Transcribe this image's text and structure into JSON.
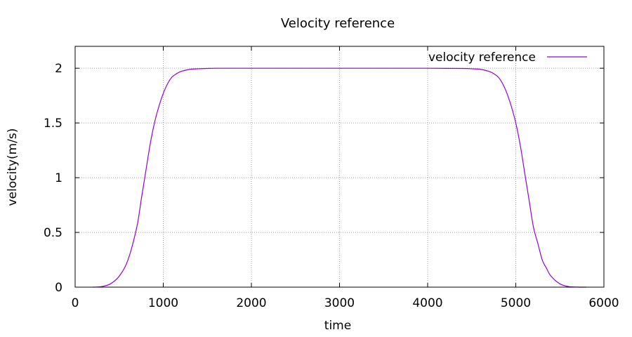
{
  "chart_data": {
    "type": "line",
    "title": "Velocity reference",
    "xlabel": "time",
    "ylabel": "velocity(m/s)",
    "xlim": [
      0,
      6000
    ],
    "ylim": [
      0,
      2.2
    ],
    "x_ticks": [
      0,
      1000,
      2000,
      3000,
      4000,
      5000,
      6000
    ],
    "x_tick_labels": [
      "0",
      "1000",
      "2000",
      "3000",
      "4000",
      "5000",
      "6000"
    ],
    "y_ticks": [
      0,
      0.5,
      1,
      1.5,
      2
    ],
    "y_tick_labels": [
      "0",
      "0.5",
      "1",
      "1.5",
      "2"
    ],
    "grid": true,
    "legend_position": "top-right",
    "colors": {
      "series": "#9400d3",
      "grid": "#a0a0a0",
      "axes": "#000000"
    },
    "series": [
      {
        "name": "velocity reference",
        "x": [
          200,
          300,
          400,
          500,
          600,
          700,
          750,
          800,
          850,
          900,
          950,
          1000,
          1050,
          1100,
          1150,
          1200,
          1300,
          1400,
          1500,
          1600,
          2000,
          3000,
          4000,
          4400,
          4500,
          4600,
          4700,
          4750,
          4800,
          4850,
          4900,
          4950,
          5000,
          5050,
          5100,
          5150,
          5200,
          5250,
          5300,
          5350,
          5400,
          5500,
          5600,
          5700,
          5800
        ],
        "y": [
          0,
          0.005,
          0.03,
          0.1,
          0.25,
          0.55,
          0.8,
          1.05,
          1.3,
          1.5,
          1.65,
          1.77,
          1.86,
          1.92,
          1.95,
          1.97,
          1.99,
          1.995,
          1.998,
          2,
          2,
          2,
          2,
          1.998,
          1.995,
          1.99,
          1.97,
          1.95,
          1.92,
          1.86,
          1.77,
          1.65,
          1.5,
          1.3,
          1.05,
          0.8,
          0.55,
          0.4,
          0.25,
          0.17,
          0.1,
          0.03,
          0.005,
          0.001,
          0
        ]
      }
    ]
  }
}
